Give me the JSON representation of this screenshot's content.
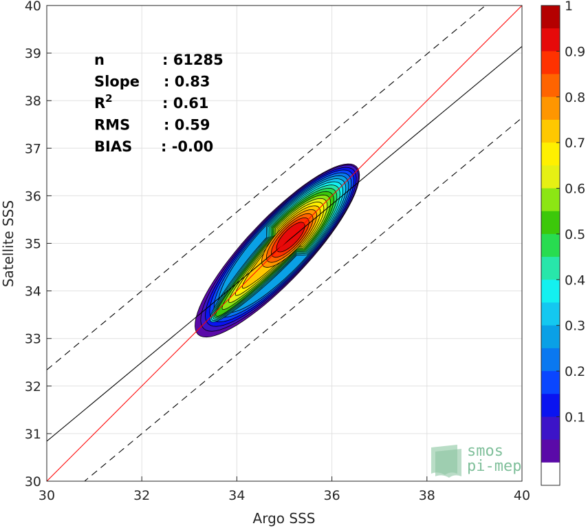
{
  "chart_data": {
    "type": "heatmap",
    "xlabel": "Argo SSS",
    "ylabel": "Satellite SSS",
    "xlim": [
      30,
      40
    ],
    "ylim": [
      30,
      40
    ],
    "xticks": [
      "30",
      "32",
      "34",
      "36",
      "38",
      "40"
    ],
    "yticks": [
      "30",
      "31",
      "32",
      "33",
      "34",
      "35",
      "36",
      "37",
      "38",
      "39",
      "40"
    ],
    "grid": true,
    "stats": [
      {
        "label": "n",
        "value": ": 61285"
      },
      {
        "label": "Slope",
        "value": ": 0.83"
      },
      {
        "label": "R",
        "sup": "2",
        "value": ": 0.61"
      },
      {
        "label": "RMS",
        "value": ": 0.59"
      },
      {
        "label": "BIAS",
        "value": ": -0.00"
      }
    ],
    "lines": {
      "identity": {
        "slope": 1,
        "intercept": 0,
        "color": "#ff0000"
      },
      "fit": {
        "slope": 0.83,
        "intercept": 5.94,
        "color": "#000000"
      },
      "upper_bound": {
        "slope": 0.83,
        "intercept": 7.44,
        "style": "dashed"
      },
      "lower_bound": {
        "slope": 0.83,
        "intercept": 4.44,
        "style": "dashed"
      }
    },
    "density": {
      "center": [
        35.15,
        35.15
      ],
      "secondary": [
        34.25,
        34.3
      ],
      "extent_x": [
        33.2,
        36.5
      ],
      "extent_y": [
        33.1,
        36.6
      ]
    },
    "colorbar": {
      "ticks": [
        "0.1",
        "0.2",
        "0.3",
        "0.4",
        "0.5",
        "0.6",
        "0.7",
        "0.8",
        "0.9",
        "1"
      ],
      "range": [
        0,
        1
      ],
      "levels": 20,
      "colors": [
        "#ffffff",
        "#5a0aa8",
        "#3c14c8",
        "#0a14f0",
        "#0a46ff",
        "#0a78f0",
        "#0aa0e6",
        "#14c8f0",
        "#14f0f0",
        "#28e6aa",
        "#28dc50",
        "#3cc80a",
        "#8ce614",
        "#e6f014",
        "#fff000",
        "#ffc800",
        "#ff9600",
        "#ff6400",
        "#ff3200",
        "#e60a0a",
        "#b40000"
      ]
    }
  },
  "logo": {
    "line1": "smos",
    "line2": "pi-mep"
  }
}
